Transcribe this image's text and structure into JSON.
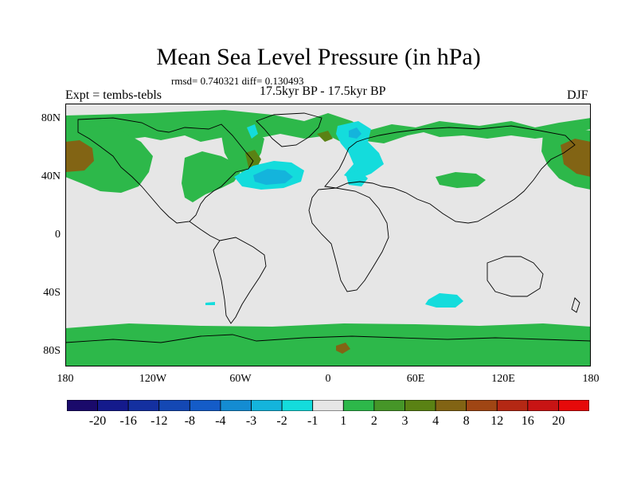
{
  "header": {
    "title": "Mean Sea Level Pressure (in hPa)",
    "stats": "rmsd= 0.740321 diff= 0.130493",
    "subtitle": "17.5kyr BP - 17.5kyr BP",
    "left_label": "Expt = tembs-tebls",
    "season": "DJF"
  },
  "axes": {
    "lat_ticks": [
      "80N",
      "40N",
      "0",
      "40S",
      "80S"
    ],
    "lon_ticks": [
      "180",
      "120W",
      "60W",
      "0",
      "60E",
      "120E",
      "180"
    ]
  },
  "colorbar": {
    "labels": [
      "-20",
      "-16",
      "-12",
      "-8",
      "-4",
      "-3",
      "-2",
      "-1",
      "1",
      "2",
      "3",
      "4",
      "8",
      "12",
      "16",
      "20"
    ],
    "colors": [
      "#1a0a6b",
      "#141a8c",
      "#1430a0",
      "#1448b4",
      "#145cc8",
      "#148cd2",
      "#14b4dc",
      "#14dcdc",
      "#e6e6e6",
      "#2db84a",
      "#469628",
      "#5a8214",
      "#826414",
      "#a04614",
      "#b42814",
      "#c81414",
      "#e60a0a"
    ]
  },
  "colors": {
    "background_field": "#e6e6e6",
    "positive_1_2": "#2db84a",
    "positive_3_4": "#5a8214",
    "positive_4_8": "#826414",
    "negative_1_2": "#14dcdc",
    "negative_2_3": "#14b4dc"
  }
}
